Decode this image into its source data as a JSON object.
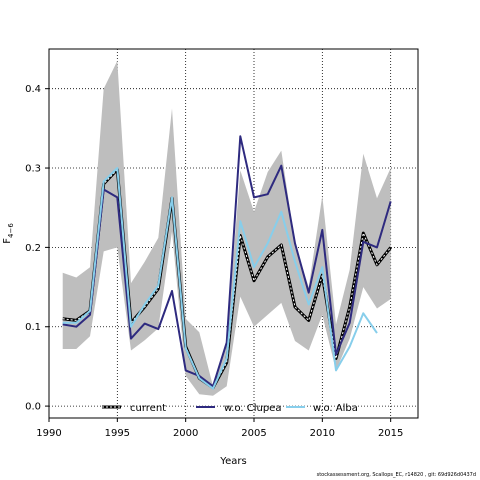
{
  "chart_data": {
    "type": "line",
    "xlabel": "Years",
    "ylabel_main": "F",
    "ylabel_sub": "4−6",
    "xlim": [
      1990,
      2017
    ],
    "ylim": [
      -0.015,
      0.45
    ],
    "xticks": [
      1990,
      1995,
      2000,
      2005,
      2010,
      2015
    ],
    "yticks": [
      0.0,
      0.1,
      0.2,
      0.3,
      0.4
    ],
    "ytick_labels": [
      "0.0",
      "0.1",
      "0.2",
      "0.3",
      "0.4"
    ],
    "grid": true,
    "legend_position": "bottom-center",
    "band": {
      "x": [
        1991,
        1992,
        1993,
        1994,
        1995,
        1996,
        1997,
        1998,
        1999,
        2000,
        2001,
        2002,
        2003,
        2004,
        2005,
        2006,
        2007,
        2008,
        2009,
        2010,
        2011,
        2012,
        2013,
        2014,
        2015
      ],
      "upper": [
        0.168,
        0.162,
        0.175,
        0.4,
        0.435,
        0.155,
        0.182,
        0.212,
        0.375,
        0.11,
        0.093,
        0.025,
        0.082,
        0.297,
        0.245,
        0.295,
        0.322,
        0.205,
        0.15,
        0.265,
        0.103,
        0.172,
        0.318,
        0.262,
        0.3
      ],
      "lower": [
        0.072,
        0.072,
        0.088,
        0.195,
        0.2,
        0.07,
        0.083,
        0.098,
        0.22,
        0.038,
        0.015,
        0.013,
        0.025,
        0.138,
        0.1,
        0.115,
        0.13,
        0.082,
        0.07,
        0.115,
        0.045,
        0.085,
        0.15,
        0.123,
        0.135
      ],
      "color": "#bebebe"
    },
    "series": [
      {
        "name": "current",
        "color": "#000000",
        "style": "dashed-thick",
        "x": [
          1991,
          1992,
          1993,
          1994,
          1995,
          1996,
          1997,
          1998,
          1999,
          2000,
          2001,
          2002,
          2003,
          2004,
          2005,
          2006,
          2007,
          2008,
          2009,
          2010,
          2011,
          2012,
          2013,
          2014,
          2015
        ],
        "values": [
          0.11,
          0.108,
          0.12,
          0.28,
          0.298,
          0.105,
          0.125,
          0.148,
          0.262,
          0.075,
          0.035,
          0.023,
          0.055,
          0.215,
          0.158,
          0.188,
          0.203,
          0.125,
          0.108,
          0.165,
          0.06,
          0.125,
          0.218,
          0.178,
          0.2
        ]
      },
      {
        "name": "w.o. Clupea",
        "color": "#2e2a7f",
        "style": "solid",
        "x": [
          1991,
          1992,
          1993,
          1994,
          1995,
          1996,
          1997,
          1998,
          1999,
          2000,
          2001,
          2002,
          2003,
          2004,
          2005,
          2006,
          2007,
          2008,
          2009,
          2010,
          2011,
          2012,
          2013,
          2014,
          2015
        ],
        "values": [
          0.103,
          0.1,
          0.115,
          0.273,
          0.263,
          0.085,
          0.104,
          0.097,
          0.145,
          0.045,
          0.038,
          0.025,
          0.08,
          0.34,
          0.263,
          0.267,
          0.303,
          0.205,
          0.143,
          0.222,
          0.065,
          0.105,
          0.207,
          0.2,
          0.258
        ]
      },
      {
        "name": "w.o. Alba",
        "color": "#87ceeb",
        "style": "solid",
        "x": [
          1991,
          1992,
          1993,
          1994,
          1995,
          1996,
          1997,
          1998,
          1999,
          2000,
          2001,
          2002,
          2003,
          2004,
          2005,
          2006,
          2007,
          2008,
          2009,
          2010,
          2011,
          2012,
          2013,
          2014
        ],
        "values": [
          0.105,
          0.105,
          0.12,
          0.283,
          0.3,
          0.1,
          0.128,
          0.152,
          0.263,
          0.073,
          0.035,
          0.022,
          0.06,
          0.233,
          0.175,
          0.205,
          0.245,
          0.182,
          0.128,
          0.175,
          0.045,
          0.075,
          0.117,
          0.092
        ]
      }
    ]
  },
  "footer_text": "stockassessment.org, Scallops_EC, r14820 , git: 69d926d0437d"
}
